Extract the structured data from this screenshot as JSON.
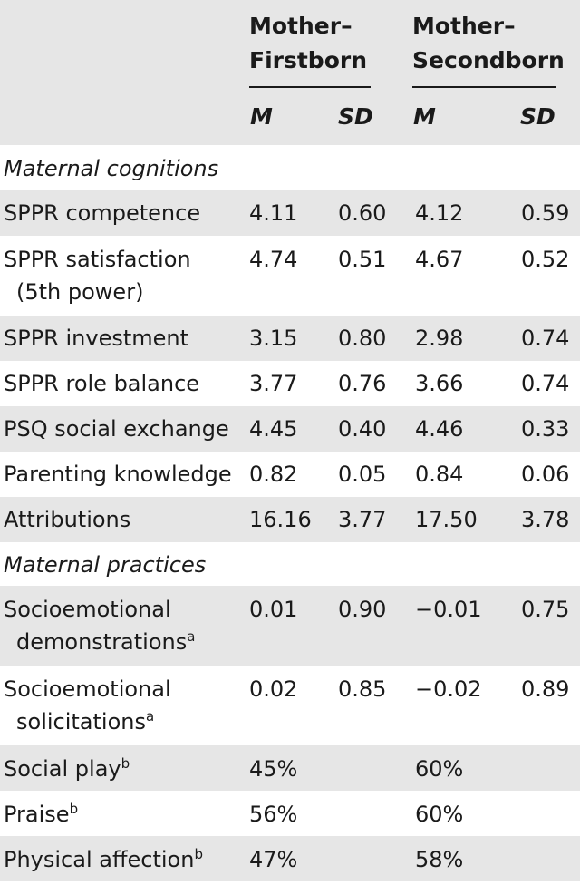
{
  "header": {
    "group1": {
      "line1": "Mother–",
      "line2": "Firstborn"
    },
    "group2": {
      "line1": "Mother–",
      "line2": "Secondborn"
    },
    "sub": {
      "m": "M",
      "sd": "SD"
    }
  },
  "sections": [
    {
      "title": "Maternal cognitions"
    },
    {
      "title": "Maternal practices"
    }
  ],
  "rows": [
    {
      "label": "SPPR competence",
      "fb_m": "4.11",
      "fb_sd": "0.60",
      "sb_m": "4.12",
      "sb_sd": "0.59"
    },
    {
      "label": "SPPR satisfaction",
      "label2": "(5th power)",
      "fb_m": "4.74",
      "fb_sd": "0.51",
      "sb_m": "4.67",
      "sb_sd": "0.52"
    },
    {
      "label": "SPPR investment",
      "fb_m": "3.15",
      "fb_sd": "0.80",
      "sb_m": "2.98",
      "sb_sd": "0.74"
    },
    {
      "label": "SPPR role balance",
      "fb_m": "3.77",
      "fb_sd": "0.76",
      "sb_m": "3.66",
      "sb_sd": "0.74"
    },
    {
      "label": "PSQ social exchange",
      "fb_m": "4.45",
      "fb_sd": "0.40",
      "sb_m": "4.46",
      "sb_sd": "0.33"
    },
    {
      "label": "Parenting knowledge",
      "fb_m": "0.82",
      "fb_sd": "0.05",
      "sb_m": "0.84",
      "sb_sd": "0.06"
    },
    {
      "label": "Attributions",
      "fb_m": "16.16",
      "fb_sd": "3.77",
      "sb_m": "17.50",
      "sb_sd": "3.78"
    },
    {
      "label": "Socioemotional",
      "label2": "demonstrations",
      "sup": "a",
      "fb_m": "0.01",
      "fb_sd": "0.90",
      "sb_m": "−0.01",
      "sb_sd": "0.75"
    },
    {
      "label": "Socioemotional",
      "label2": "solicitations",
      "sup": "a",
      "fb_m": "0.02",
      "fb_sd": "0.85",
      "sb_m": "−0.02",
      "sb_sd": "0.89"
    },
    {
      "label": "Social play",
      "sup": "b",
      "fb_m": "45%",
      "sb_m": "60%"
    },
    {
      "label": "Praise",
      "sup": "b",
      "fb_m": "56%",
      "sb_m": "60%"
    },
    {
      "label": "Physical affection",
      "sup": "b",
      "fb_m": "47%",
      "sb_m": "58%"
    }
  ]
}
